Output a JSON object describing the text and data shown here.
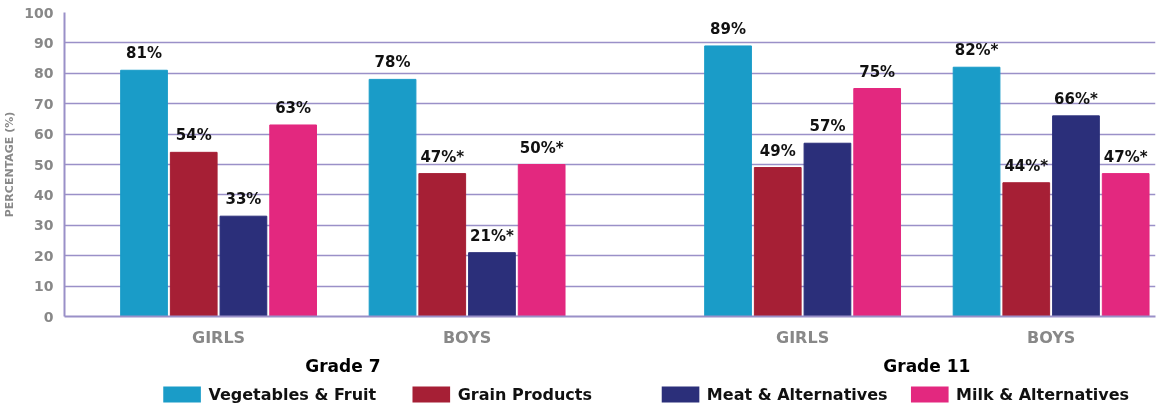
{
  "chart_data": {
    "type": "bar",
    "ylabel": "PERCENTAGE (%)",
    "categories": [
      "GIRLS",
      "BOYS",
      "GIRLS",
      "BOYS"
    ],
    "series": [
      {
        "name": "Vegetables & Fruit",
        "color": "#1a9cc8",
        "values": [
          81,
          78,
          89,
          82
        ],
        "value_labels": [
          "81%",
          "78%",
          "89%",
          "82%*"
        ]
      },
      {
        "name": "Grain Products",
        "color": "#a61f35",
        "values": [
          54,
          47,
          49,
          44
        ],
        "value_labels": [
          "54%",
          "47%*",
          "49%",
          "44%*"
        ]
      },
      {
        "name": "Meat & Alternatives",
        "color": "#2b2f7a",
        "values": [
          33,
          21,
          57,
          66
        ],
        "value_labels": [
          "33%",
          "21%*",
          "57%",
          "66%*"
        ]
      },
      {
        "name": "Milk & Alternatives",
        "color": "#e3287f",
        "values": [
          63,
          50,
          75,
          47
        ],
        "value_labels": [
          "63%",
          "50%*",
          "75%",
          "47%*"
        ]
      }
    ],
    "annotations": [
      "Grade 7",
      "Grade 11"
    ],
    "ylim": [
      0,
      100
    ],
    "yticks": [
      0,
      10,
      20,
      30,
      40,
      50,
      60,
      70,
      80,
      90,
      100
    ],
    "grid": "y",
    "legend": "bottom"
  }
}
